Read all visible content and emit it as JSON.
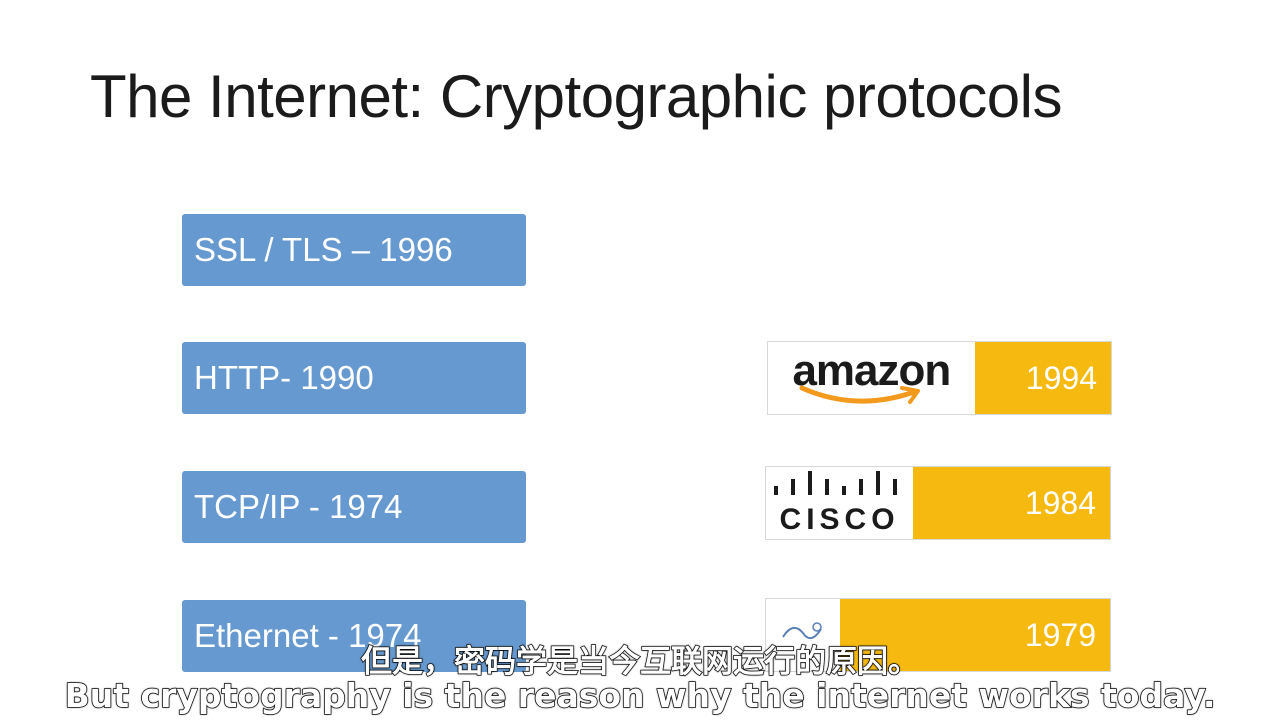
{
  "slide": {
    "title": "The Internet: Cryptographic protocols"
  },
  "protocols": [
    {
      "label": "SSL / TLS – 1996"
    },
    {
      "label": "HTTP- 1990"
    },
    {
      "label": "TCP/IP - 1974"
    },
    {
      "label": "Ethernet - 1974"
    }
  ],
  "companies": [
    {
      "logo_text": "amazon",
      "logo_icon": "amazon-logo",
      "year": "1994"
    },
    {
      "logo_text": "CISCO",
      "logo_icon": "cisco-logo",
      "year": "1984"
    },
    {
      "logo_icon": "partial-logo",
      "year": "1979"
    }
  ],
  "subtitles": {
    "chinese": "但是，密码学是当今互联网运行的原因。",
    "english": "But cryptography is the reason why the internet works today."
  },
  "colors": {
    "protocol_box": "#6699cf",
    "year_bar": "#f5b90f"
  }
}
